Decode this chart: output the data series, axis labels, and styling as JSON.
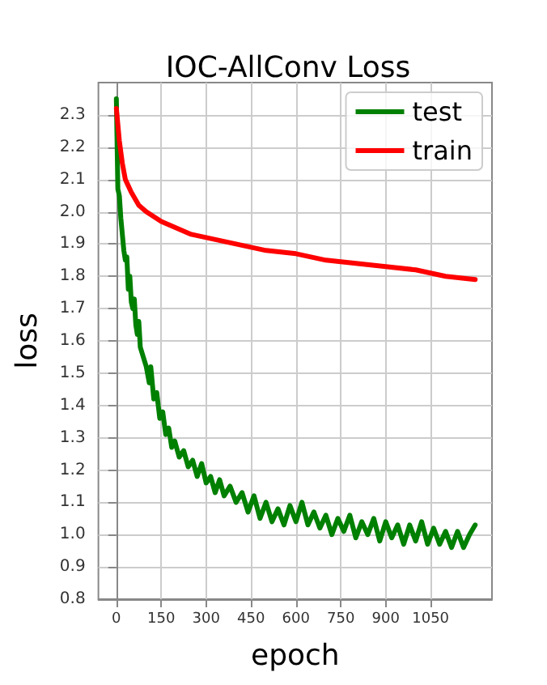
{
  "chart_data": {
    "type": "line",
    "title": "IOC-AllConv Loss",
    "xlabel": "epoch",
    "ylabel": "loss",
    "xlim": [
      -60,
      1255
    ],
    "xticks": [
      0,
      150,
      300,
      450,
      600,
      750,
      900,
      {
        "value": 1050,
        "label": "1050"
      }
    ],
    "ylim": [
      0.8,
      2.4
    ],
    "yticks": [
      0.8,
      0.9,
      {
        "value": 1,
        "label": "1.0"
      },
      1.1,
      1.2,
      1.3,
      1.4,
      1.5,
      1.6,
      1.7,
      1.8,
      1.9,
      {
        "value": 2,
        "label": "2.0"
      },
      2.1,
      2.2,
      2.3
    ],
    "grid": true,
    "legend": "top right",
    "marker": "none",
    "line_style": "solid",
    "series": [
      {
        "name": "test",
        "color": "#008000",
        "x": [
          0,
          5,
          10,
          15,
          20,
          25,
          30,
          35,
          40,
          45,
          50,
          55,
          60,
          65,
          70,
          75,
          80,
          90,
          100,
          110,
          115,
          125,
          135,
          145,
          155,
          165,
          175,
          185,
          195,
          210,
          225,
          240,
          255,
          270,
          285,
          300,
          315,
          330,
          345,
          360,
          380,
          400,
          420,
          440,
          460,
          480,
          500,
          520,
          540,
          560,
          580,
          600,
          620,
          640,
          660,
          680,
          700,
          720,
          740,
          760,
          780,
          800,
          820,
          840,
          860,
          880,
          900,
          920,
          940,
          960,
          980,
          1000,
          1020,
          1040,
          1060,
          1080,
          1100,
          1120,
          1140,
          1160,
          1180,
          1199
        ],
        "values": [
          2.35,
          2.07,
          2.05,
          1.98,
          1.93,
          1.88,
          1.85,
          1.86,
          1.76,
          1.8,
          1.72,
          1.7,
          1.73,
          1.65,
          1.62,
          1.66,
          1.58,
          1.55,
          1.52,
          1.47,
          1.52,
          1.42,
          1.44,
          1.36,
          1.38,
          1.31,
          1.33,
          1.27,
          1.29,
          1.24,
          1.26,
          1.21,
          1.23,
          1.18,
          1.22,
          1.16,
          1.18,
          1.13,
          1.17,
          1.12,
          1.15,
          1.1,
          1.13,
          1.07,
          1.12,
          1.05,
          1.1,
          1.04,
          1.08,
          1.03,
          1.09,
          1.04,
          1.1,
          1.03,
          1.07,
          1.02,
          1.06,
          1.0,
          1.05,
          1.01,
          1.06,
          0.99,
          1.04,
          1.0,
          1.05,
          0.98,
          1.04,
          0.99,
          1.03,
          0.97,
          1.03,
          0.98,
          1.04,
          0.97,
          1.02,
          0.97,
          1.01,
          0.96,
          1.01,
          0.96,
          1.0,
          1.03
        ]
      },
      {
        "name": "train",
        "color": "#ff0000",
        "x": [
          0,
          10,
          20,
          30,
          50,
          75,
          100,
          150,
          200,
          250,
          300,
          350,
          400,
          450,
          500,
          600,
          700,
          800,
          900,
          1000,
          1100,
          1199
        ],
        "values": [
          2.32,
          2.22,
          2.15,
          2.1,
          2.06,
          2.02,
          2.0,
          1.97,
          1.95,
          1.93,
          1.92,
          1.91,
          1.9,
          1.89,
          1.88,
          1.87,
          1.85,
          1.84,
          1.83,
          1.82,
          1.8,
          1.79
        ]
      }
    ]
  }
}
